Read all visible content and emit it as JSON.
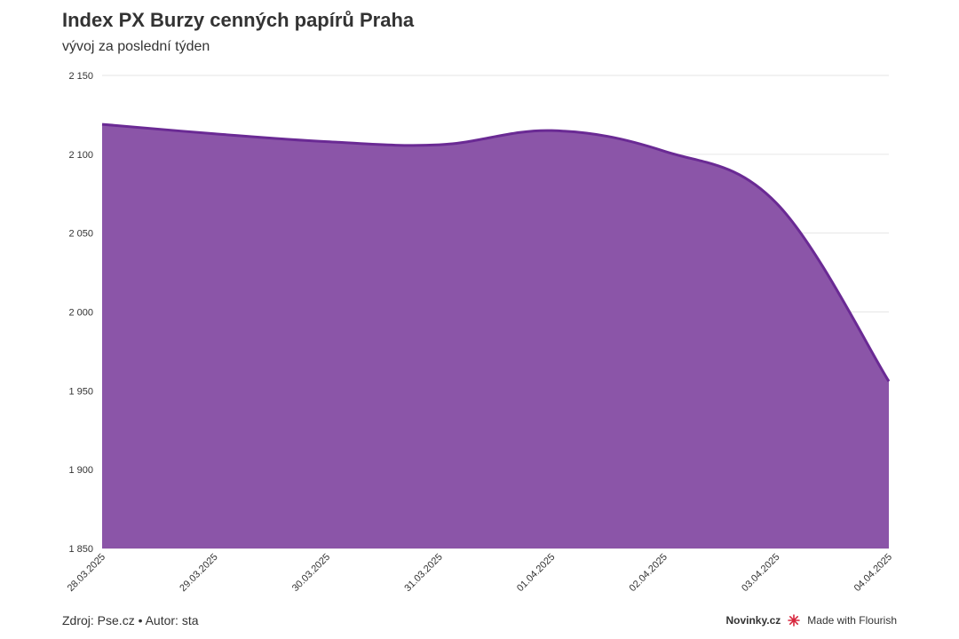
{
  "header": {
    "title": "Index PX Burzy cenných papírů Praha",
    "subtitle": "vývoj za poslední týden"
  },
  "footer": {
    "source": "Zdroj: Pse.cz • Autor: sta",
    "brand": "Novinky.cz",
    "made_with": "Made with Flourish"
  },
  "colors": {
    "area_fill": "#8b55a8",
    "line": "#6a2a94",
    "grid": "#e6e6e6",
    "flourish_icon": "#d7263d"
  },
  "icons": {
    "flourish": "flourish-burst-icon"
  },
  "chart_data": {
    "type": "area",
    "title": "Index PX Burzy cenných papírů Praha",
    "subtitle": "vývoj za poslední týden",
    "x": [
      "28.03.2025",
      "29.03.2025",
      "30.03.2025",
      "31.03.2025",
      "01.04.2025",
      "02.04.2025",
      "03.04.2025",
      "04.04.2025"
    ],
    "series": [
      {
        "values": [
          2119,
          2113,
          2108,
          2106,
          2115,
          2102,
          2069,
          1956
        ]
      }
    ],
    "ylim": [
      1850,
      2150
    ],
    "yticks": [
      "1 850",
      "1 900",
      "1 950",
      "2 000",
      "2 050",
      "2 100",
      "2 150"
    ],
    "ytick_values": [
      1850,
      1900,
      1950,
      2000,
      2050,
      2100,
      2150
    ],
    "grid": true,
    "legend": "none"
  }
}
